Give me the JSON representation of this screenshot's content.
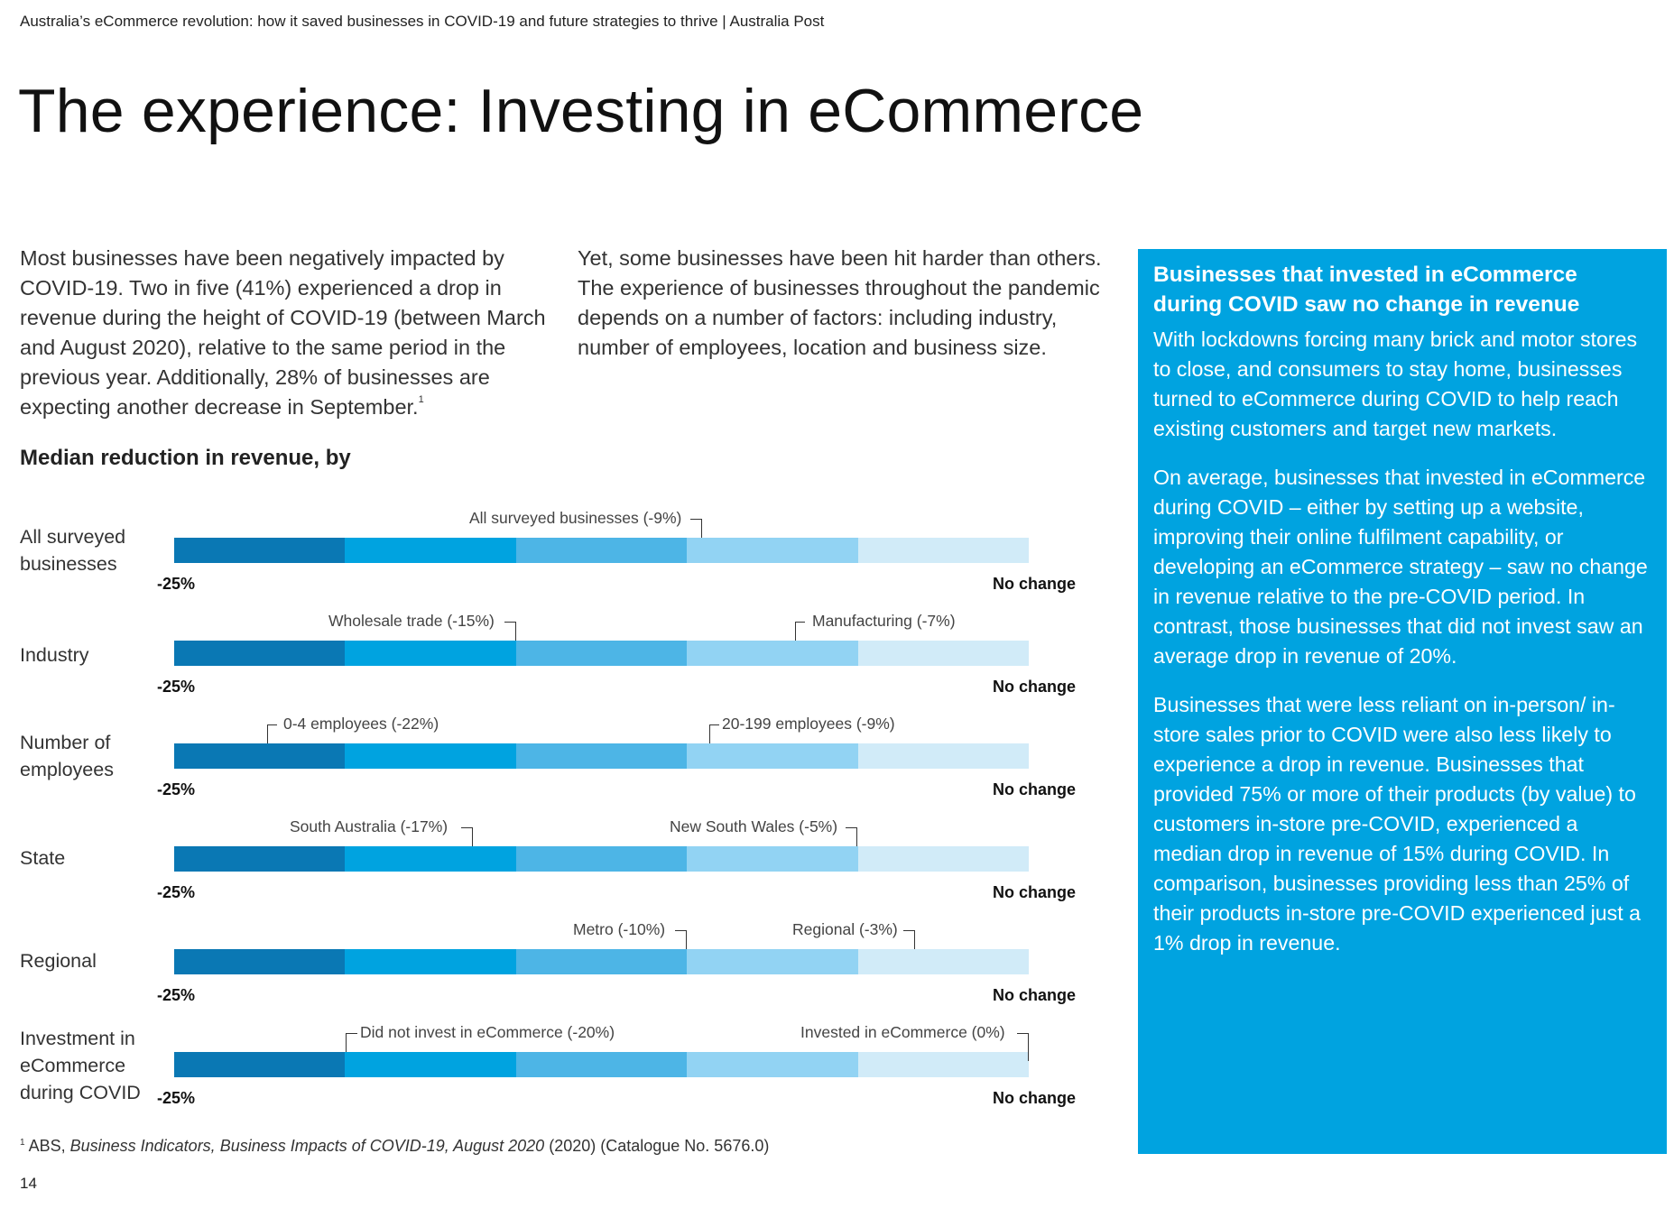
{
  "header": {
    "running_title": "Australia’s eCommerce revolution: how it saved businesses in COVID-19 and future strategies to thrive | Australia Post"
  },
  "page_title": "The experience: Investing in eCommerce",
  "intro": {
    "left": "Most businesses have been negatively impacted by COVID-19. Two in five (41%) experienced a drop in revenue during the height of COVID-19 (between March and August 2020), relative to the same period in the previous year. Additionally, 28% of businesses are expecting another decrease in September.",
    "left_footnote_ref": "1",
    "right": "Yet, some businesses have been hit harder than others. The experience of businesses throughout the pandemic depends on a number of factors: including industry, number of employees, location and business size."
  },
  "chart_data": {
    "type": "bar",
    "title": "Median reduction in revenue, by",
    "axis": {
      "min_label": "-25%",
      "max_label": "No change",
      "xlim": [
        -25,
        0
      ]
    },
    "segment_colors": [
      "#0a78b4",
      "#00a3e0",
      "#4db5e6",
      "#92d3f3",
      "#d1ebf8"
    ],
    "rows": [
      {
        "label": "All surveyed businesses",
        "markers": [
          {
            "text": "All surveyed businesses (-9%)",
            "value": -9
          }
        ]
      },
      {
        "label": "Industry",
        "markers": [
          {
            "text": "Wholesale trade (-15%)",
            "value": -15
          },
          {
            "text": "Manufacturing (-7%)",
            "value": -7
          }
        ]
      },
      {
        "label": "Number of employees",
        "markers": [
          {
            "text": "0-4 employees (-22%)",
            "value": -22
          },
          {
            "text": "20-199 employees (-9%)",
            "value": -9
          }
        ]
      },
      {
        "label": "State",
        "markers": [
          {
            "text": "South Australia (-17%)",
            "value": -17
          },
          {
            "text": "New South Wales (-5%)",
            "value": -5
          }
        ]
      },
      {
        "label": "Regional",
        "markers": [
          {
            "text": "Metro (-10%)",
            "value": -10
          },
          {
            "text": "Regional (-3%)",
            "value": -3
          }
        ]
      },
      {
        "label": "Investment in eCommerce during COVID",
        "markers": [
          {
            "text": "Did not invest in eCommerce (-20%)",
            "value": -20
          },
          {
            "text": "Invested in eCommerce (0%)",
            "value": 0
          }
        ]
      }
    ]
  },
  "callout": {
    "title": "Businesses that invested in eCommerce during COVID saw no change in revenue",
    "paragraphs": [
      "With lockdowns forcing many brick and motor stores to close, and consumers to stay home, businesses turned to eCommerce during COVID to help reach existing customers and target new markets.",
      "On average, businesses that invested in eCommerce during COVID – either by setting up a website, improving their online fulfilment capability, or developing an eCommerce strategy – saw no change in revenue relative to the pre-COVID period. In contrast, those businesses that did not invest saw an average drop in revenue of 20%.",
      "Businesses that were less reliant on in-person/ in-store sales prior to COVID were also less likely to experience a drop in revenue. Businesses that provided 75% or more of their products (by value) to customers in-store pre-COVID, experienced a median drop in revenue of 15% during COVID. In comparison, businesses providing less than 25% of their products in-store pre-COVID experienced just a 1% drop in revenue."
    ]
  },
  "footnote": {
    "marker": "1",
    "prefix": "ABS, ",
    "title": "Business Indicators, Business Impacts of COVID-19, August 2020",
    "suffix": " (2020) (Catalogue No. 5676.0)"
  },
  "page_number": "14"
}
